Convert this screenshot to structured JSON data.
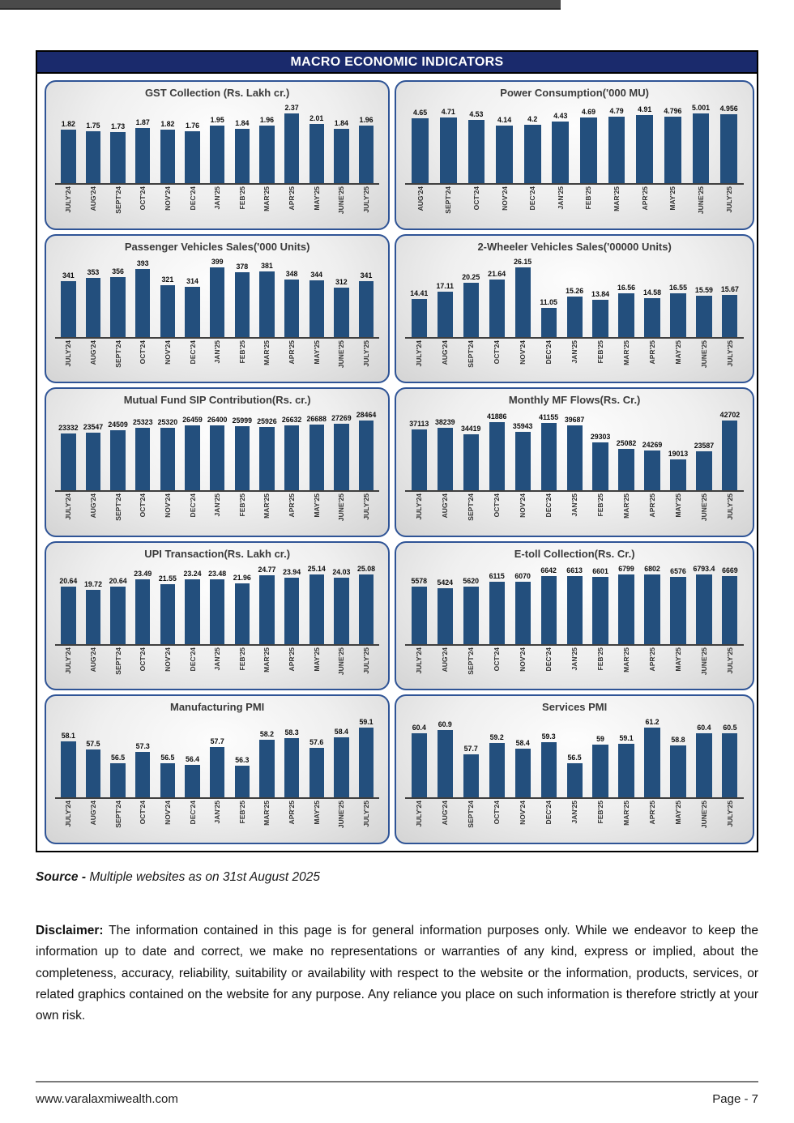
{
  "page": {
    "header_title": "MACRO ECONOMIC INDICATORS",
    "source_label": "Source -",
    "source_text": " Multiple websites as on 31st August 2025",
    "disclaimer_label": "Disclaimer:",
    "disclaimer_text": " The information contained in this page is for general information purposes only. While we endeavor to keep the information up to date and correct, we make no representations or warranties of any kind, express or implied, about the completeness, accuracy, reliability, suitability or availability with respect to the website or the information, products, services, or related graphics contained on the website for any purpose. Any reliance you place on such information is therefore strictly at your own risk.",
    "footer_url": "www.varalaxmiwealth.com",
    "footer_page": "Page - 7"
  },
  "colors": {
    "bar": "#234f7d",
    "header_bg": "#1a2a6c",
    "panel_border": "#2f5496"
  },
  "chart_data": [
    {
      "type": "bar",
      "name": "gst-collection",
      "title": "GST Collection (Rs. Lakh cr.)",
      "categories": [
        "JULY'24",
        "AUG'24",
        "SEPT'24",
        "OCT'24",
        "NOV'24",
        "DEC'24",
        "JAN'25",
        "FEB'25",
        "MAR'25",
        "APR'25",
        "MAY'25",
        "JUNE'25",
        "JULY'25"
      ],
      "values": [
        1.82,
        1.75,
        1.73,
        1.87,
        1.82,
        1.76,
        1.95,
        1.84,
        1.96,
        2.37,
        2.01,
        1.84,
        1.96
      ],
      "ylim": [
        0,
        2.5
      ],
      "xlabel": "",
      "ylabel": "",
      "grid": false,
      "legend": "none"
    },
    {
      "type": "bar",
      "name": "power-consumption",
      "title": "Power Consumption('000 MU)",
      "categories": [
        "AUG'24",
        "SEPT'24",
        "OCT'24",
        "NOV'24",
        "DEC'24",
        "JAN'25",
        "FEB'25",
        "MAR'25",
        "APR'25",
        "MAY'25",
        "JUNE'25",
        "JULY'25"
      ],
      "values": [
        4.65,
        4.71,
        4.53,
        4.14,
        4.2,
        4.43,
        4.69,
        4.79,
        4.91,
        4.796,
        5.001,
        4.956
      ],
      "ylim": [
        0,
        5.5
      ],
      "xlabel": "",
      "ylabel": "",
      "grid": false,
      "legend": "none"
    },
    {
      "type": "bar",
      "name": "passenger-vehicles-sales",
      "title": "Passenger Vehicles Sales('000 Units)",
      "categories": [
        "JULY'24",
        "AUG'24",
        "SEPT'24",
        "OCT'24",
        "NOV'24",
        "DEC'24",
        "JAN'25",
        "FEB'25",
        "MAR'25",
        "APR'25",
        "MAY'25",
        "JUNE'25",
        "JULY'25"
      ],
      "values": [
        341,
        353,
        356,
        393,
        321,
        314,
        399,
        378,
        381,
        348,
        344,
        312,
        341
      ],
      "ylim": [
        100,
        450
      ],
      "xlabel": "",
      "ylabel": "",
      "grid": false,
      "legend": "none"
    },
    {
      "type": "bar",
      "name": "two-wheeler-vehicles-sales",
      "title": "2-Wheeler Vehicles Sales('00000 Units)",
      "categories": [
        "JULY'24",
        "AUG'24",
        "SEPT'24",
        "OCT'24",
        "NOV'24",
        "DEC'24",
        "JAN'25",
        "FEB'25",
        "MAR'25",
        "APR'25",
        "MAY'25",
        "JUNE'25",
        "JULY'25"
      ],
      "values": [
        14.41,
        17.11,
        20.25,
        21.64,
        26.15,
        11.05,
        15.26,
        13.84,
        16.56,
        14.58,
        16.55,
        15.59,
        15.67
      ],
      "ylim": [
        0,
        30
      ],
      "xlabel": "",
      "ylabel": "",
      "grid": false,
      "legend": "none"
    },
    {
      "type": "bar",
      "name": "mutual-fund-sip-contribution",
      "title": "Mutual Fund SIP Contribution(Rs. cr.)",
      "categories": [
        "JULY'24",
        "AUG'24",
        "SEPT'24",
        "OCT'24",
        "NOV'24",
        "DEC'24",
        "JAN'25",
        "FEB'25",
        "MAR'25",
        "APR'25",
        "MAY'25",
        "JUNE'25",
        "JULY'25"
      ],
      "values": [
        23332,
        23547,
        24509,
        25323,
        25320,
        26459,
        26400,
        25999,
        25926,
        26632,
        26688,
        27269,
        28464
      ],
      "ylim": [
        0,
        30000
      ],
      "xlabel": "",
      "ylabel": "",
      "grid": false,
      "legend": "none"
    },
    {
      "type": "bar",
      "name": "monthly-mf-flows",
      "title": "Monthly MF Flows(Rs. Cr.)",
      "categories": [
        "JULY'24",
        "AUG'24",
        "SEPT'24",
        "OCT'24",
        "NOV'24",
        "DEC'24",
        "JAN'25",
        "FEB'25",
        "MAR'25",
        "APR'25",
        "MAY'25",
        "JUNE'25",
        "JULY'25"
      ],
      "values": [
        37113,
        38239,
        34419,
        41886,
        35943,
        41155,
        39687,
        29303,
        25082,
        24269,
        19013,
        23587,
        42702
      ],
      "ylim": [
        0,
        45000
      ],
      "xlabel": "",
      "ylabel": "",
      "grid": false,
      "legend": "none"
    },
    {
      "type": "bar",
      "name": "upi-transaction",
      "title": "UPI Transaction(Rs. Lakh cr.)",
      "categories": [
        "JULY'24",
        "AUG'24",
        "SEPT'24",
        "OCT'24",
        "NOV'24",
        "DEC'24",
        "JAN'25",
        "FEB'25",
        "MAR'25",
        "APR'25",
        "MAY'25",
        "JUNE'25",
        "JULY'25"
      ],
      "values": [
        20.64,
        19.72,
        20.64,
        23.49,
        21.55,
        23.24,
        23.48,
        21.96,
        24.77,
        23.94,
        25.14,
        24.03,
        25.08
      ],
      "ylim": [
        0,
        27
      ],
      "xlabel": "",
      "ylabel": "",
      "grid": false,
      "legend": "none"
    },
    {
      "type": "bar",
      "name": "e-toll-collection",
      "title": "E-toll Collection(Rs. Cr.)",
      "categories": [
        "JULY'24",
        "AUG'24",
        "SEPT'24",
        "OCT'24",
        "NOV'24",
        "DEC'24",
        "JAN'25",
        "FEB'25",
        "MAR'25",
        "APR'25",
        "MAY'25",
        "JUNE'25",
        "JULY'25"
      ],
      "values": [
        5578,
        5424,
        5620,
        6115,
        6070,
        6642,
        6613,
        6601,
        6799,
        6802,
        6576,
        6793.4,
        6669
      ],
      "ylim": [
        0,
        7200
      ],
      "xlabel": "",
      "ylabel": "",
      "grid": false,
      "legend": "none"
    },
    {
      "type": "bar",
      "name": "manufacturing-pmi",
      "title": "Manufacturing PMI",
      "categories": [
        "JULY'24",
        "AUG'24",
        "SEPT'24",
        "OCT'24",
        "NOV'24",
        "DEC'24",
        "JAN'25",
        "FEB'25",
        "MAR'25",
        "APR'25",
        "MAY'25",
        "JUNE'25",
        "JULY'25"
      ],
      "values": [
        58.1,
        57.5,
        56.5,
        57.3,
        56.5,
        56.4,
        57.7,
        56.3,
        58.2,
        58.3,
        57.6,
        58.4,
        59.1
      ],
      "ylim": [
        54,
        60
      ],
      "xlabel": "",
      "ylabel": "",
      "grid": false,
      "legend": "none"
    },
    {
      "type": "bar",
      "name": "services-pmi",
      "title": "Services PMI",
      "categories": [
        "JULY'24",
        "AUG'24",
        "SEPT'24",
        "OCT'24",
        "NOV'24",
        "DEC'24",
        "JAN'25",
        "FEB'25",
        "MAR'25",
        "APR'25",
        "MAY'25",
        "JUNE'25",
        "JULY'25"
      ],
      "values": [
        60.4,
        60.9,
        57.7,
        59.2,
        58.4,
        59.3,
        56.5,
        59,
        59.1,
        61.2,
        58.8,
        60.4,
        60.5
      ],
      "ylim": [
        52,
        62
      ],
      "xlabel": "",
      "ylabel": "",
      "grid": false,
      "legend": "none"
    }
  ]
}
